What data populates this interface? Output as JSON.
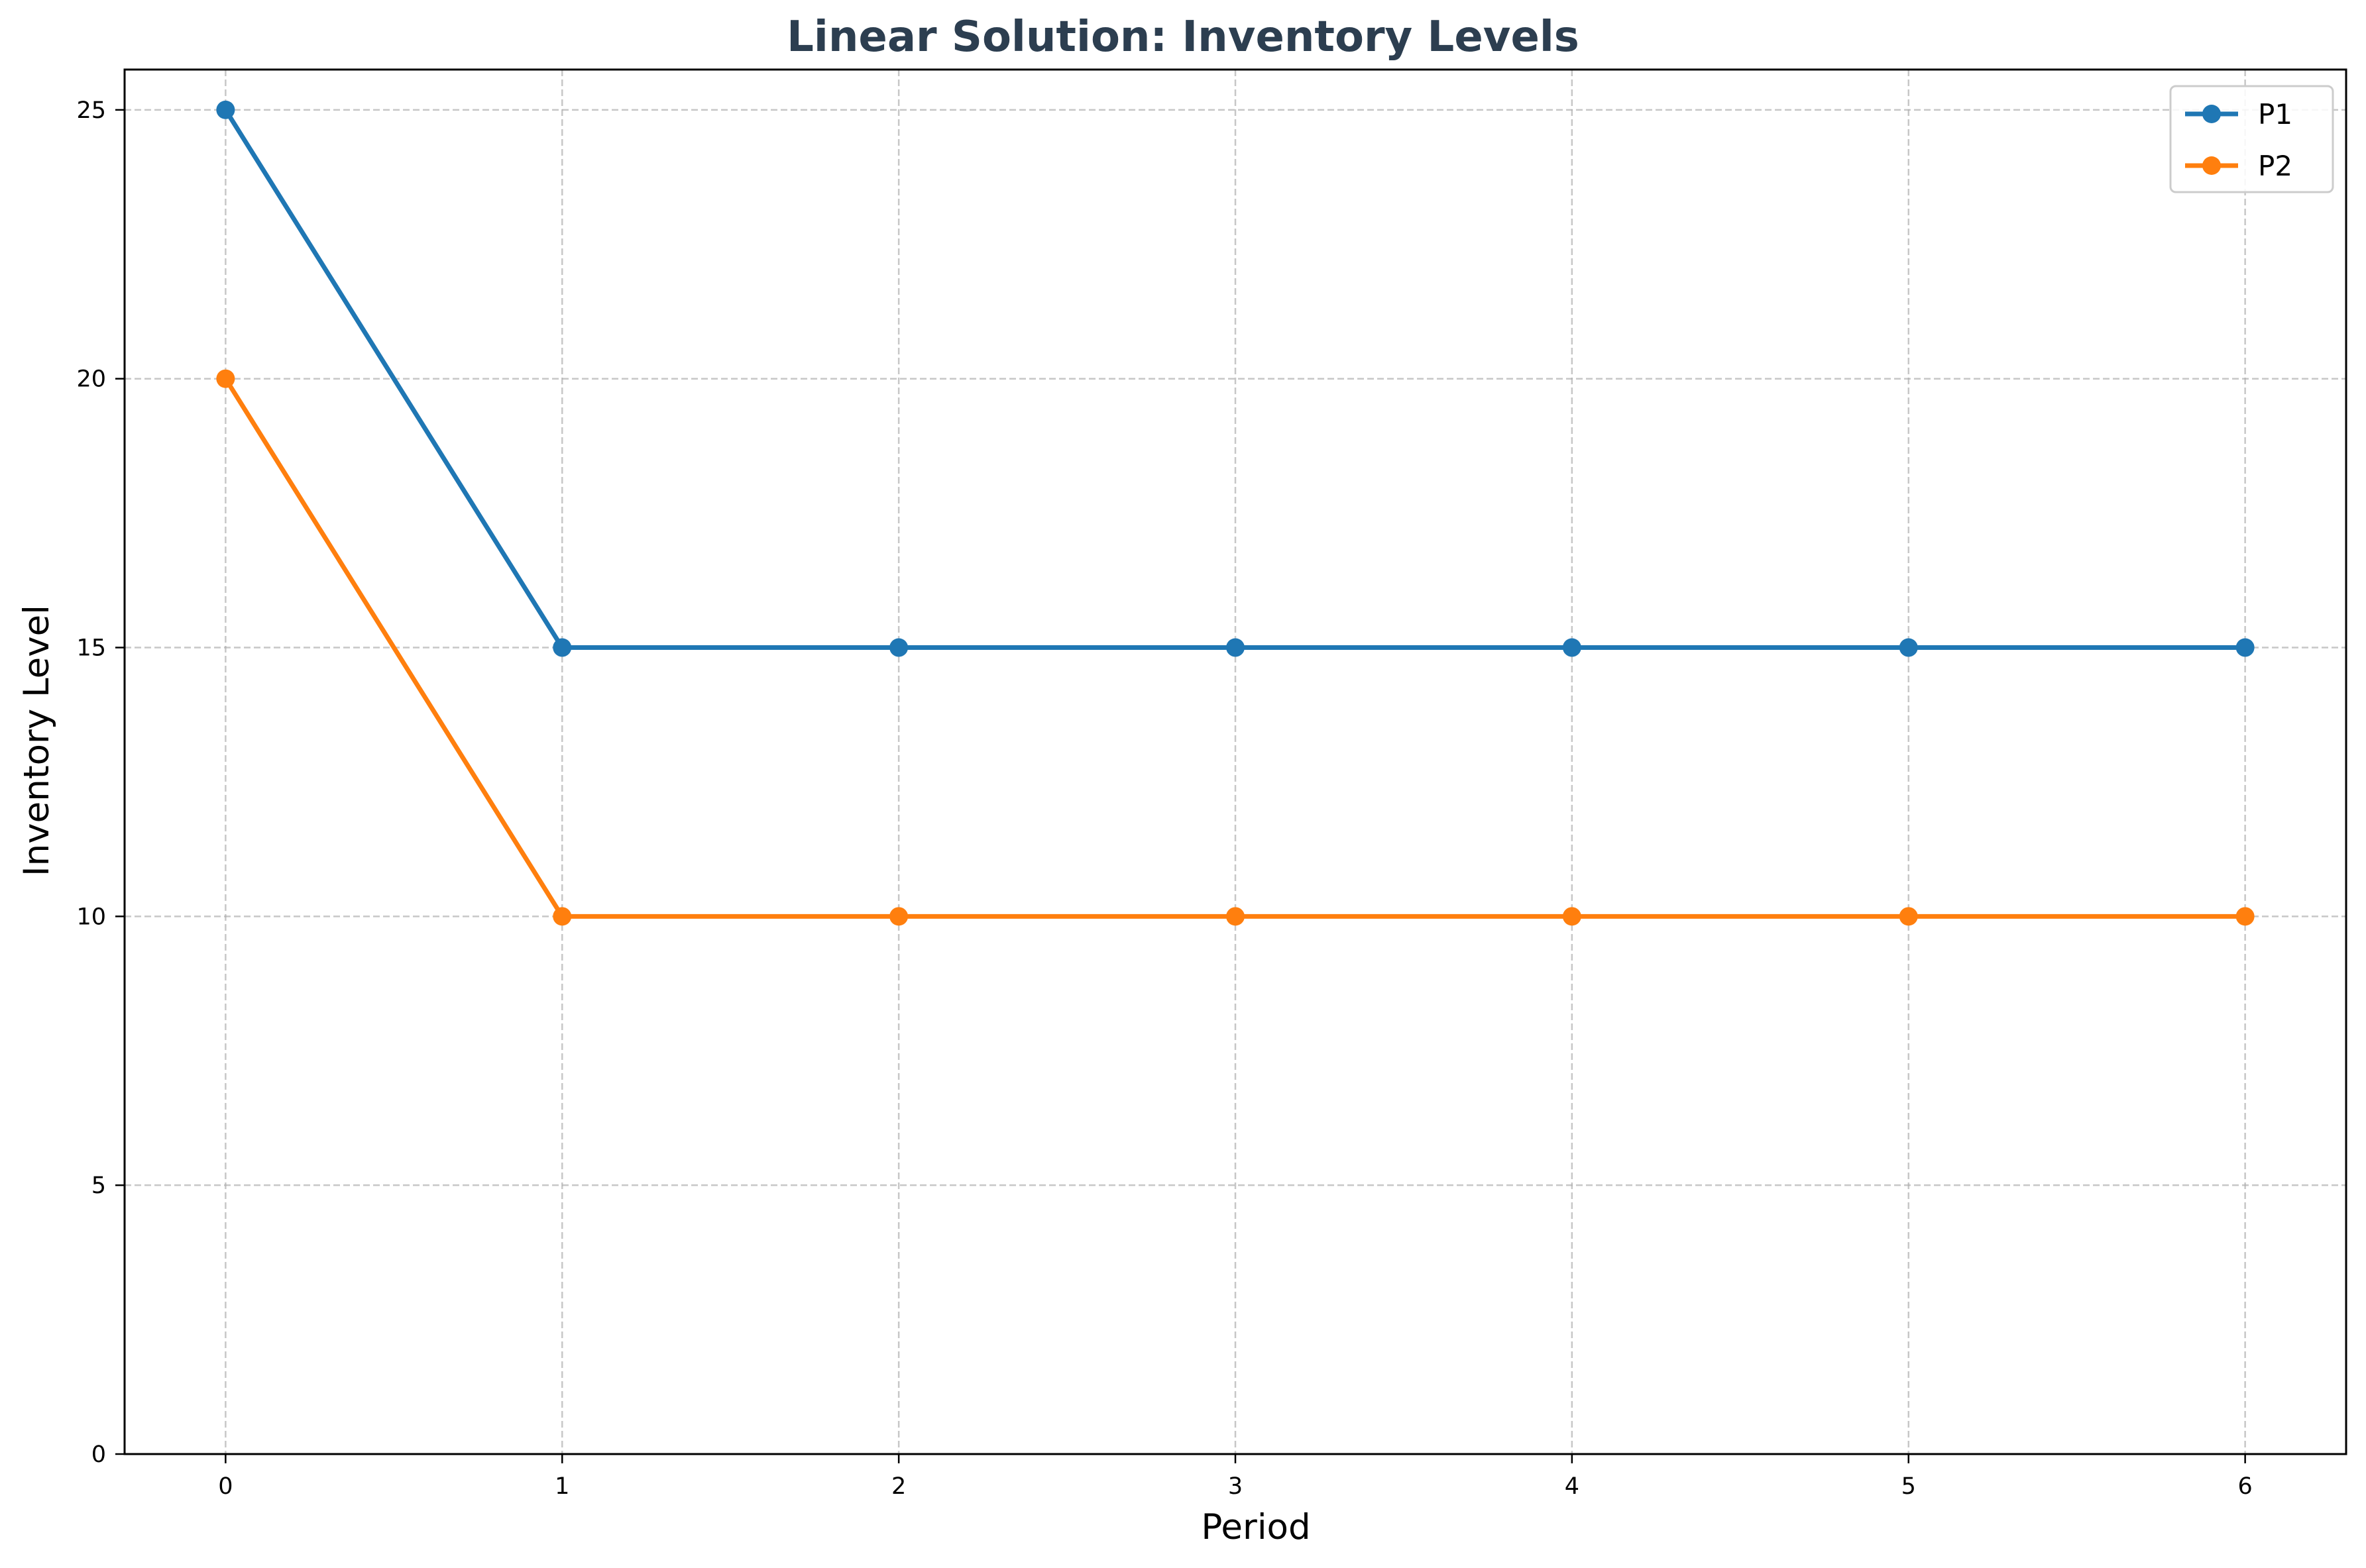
{
  "chart_data": {
    "type": "line",
    "title": "Linear Solution: Inventory Levels",
    "xlabel": "Period",
    "ylabel": "Inventory Level",
    "x": [
      0,
      1,
      2,
      3,
      4,
      5,
      6
    ],
    "xticks": [
      "0",
      "1",
      "2",
      "3",
      "4",
      "5",
      "6"
    ],
    "yticks": [
      "0",
      "5",
      "10",
      "15",
      "20",
      "25"
    ],
    "xlim": [
      -0.3,
      6.3
    ],
    "ylim": [
      0,
      25.75
    ],
    "grid": true,
    "legend_position": "top-right",
    "series": [
      {
        "name": "P1",
        "color": "#1f77b4",
        "values": [
          25,
          15,
          15,
          15,
          15,
          15,
          15
        ]
      },
      {
        "name": "P2",
        "color": "#ff7f0e",
        "values": [
          20,
          10,
          10,
          10,
          10,
          10,
          10
        ]
      }
    ]
  }
}
